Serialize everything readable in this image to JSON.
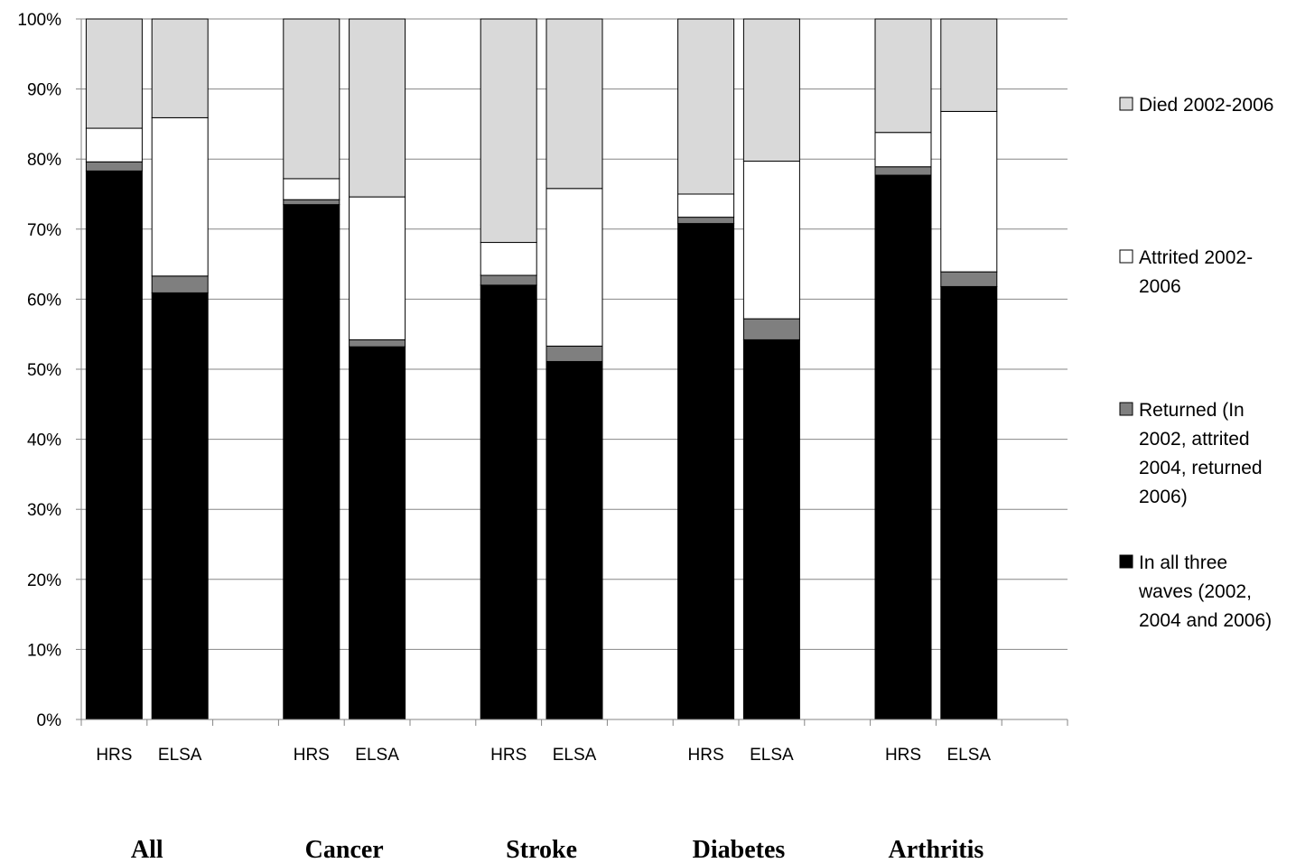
{
  "chart_data": {
    "type": "bar",
    "stacked": true,
    "percent": true,
    "groups": [
      "All",
      "Cancer",
      "Stroke",
      "Diabetes",
      "Arthritis"
    ],
    "categories": [
      "HRS",
      "ELSA",
      "HRS",
      "ELSA",
      "HRS",
      "ELSA",
      "HRS",
      "ELSA",
      "HRS",
      "ELSA"
    ],
    "category_group": [
      0,
      0,
      1,
      1,
      2,
      2,
      3,
      3,
      4,
      4
    ],
    "series": [
      {
        "name": "In all three waves (2002, 2004 and 2006)",
        "color": "#000000",
        "values": [
          78.3,
          60.9,
          73.5,
          53.2,
          62.0,
          51.1,
          70.8,
          54.2,
          77.7,
          61.8
        ]
      },
      {
        "name": "Returned (In 2002, attrited 2004, returned 2006)",
        "color": "#7f7f7f",
        "values": [
          1.3,
          2.4,
          0.7,
          1.0,
          1.4,
          2.2,
          0.9,
          3.0,
          1.2,
          2.1
        ]
      },
      {
        "name": "Attrited 2002-2006",
        "color": "#ffffff",
        "values": [
          4.8,
          22.6,
          3.0,
          20.4,
          4.7,
          22.5,
          3.3,
          22.5,
          4.9,
          22.9
        ]
      },
      {
        "name": "Died 2002-2006",
        "color": "#d9d9d9",
        "values": [
          15.6,
          14.1,
          22.8,
          25.4,
          31.9,
          24.2,
          25.0,
          20.3,
          16.2,
          13.2
        ]
      }
    ],
    "legend_lines": [
      [
        "Died 2002-2006"
      ],
      [
        "Attrited 2002-",
        "2006"
      ],
      [
        "Returned (In",
        "2002, attrited",
        "2004, returned",
        "2006)"
      ],
      [
        "In all three",
        "waves (2002,",
        "2004 and 2006)"
      ]
    ],
    "ylim": [
      0,
      100
    ],
    "yticks": [
      "0%",
      "10%",
      "20%",
      "30%",
      "40%",
      "50%",
      "60%",
      "70%",
      "80%",
      "90%",
      "100%"
    ],
    "grid": true,
    "legend_position": "right",
    "title": "",
    "xlabel": "",
    "ylabel": ""
  }
}
